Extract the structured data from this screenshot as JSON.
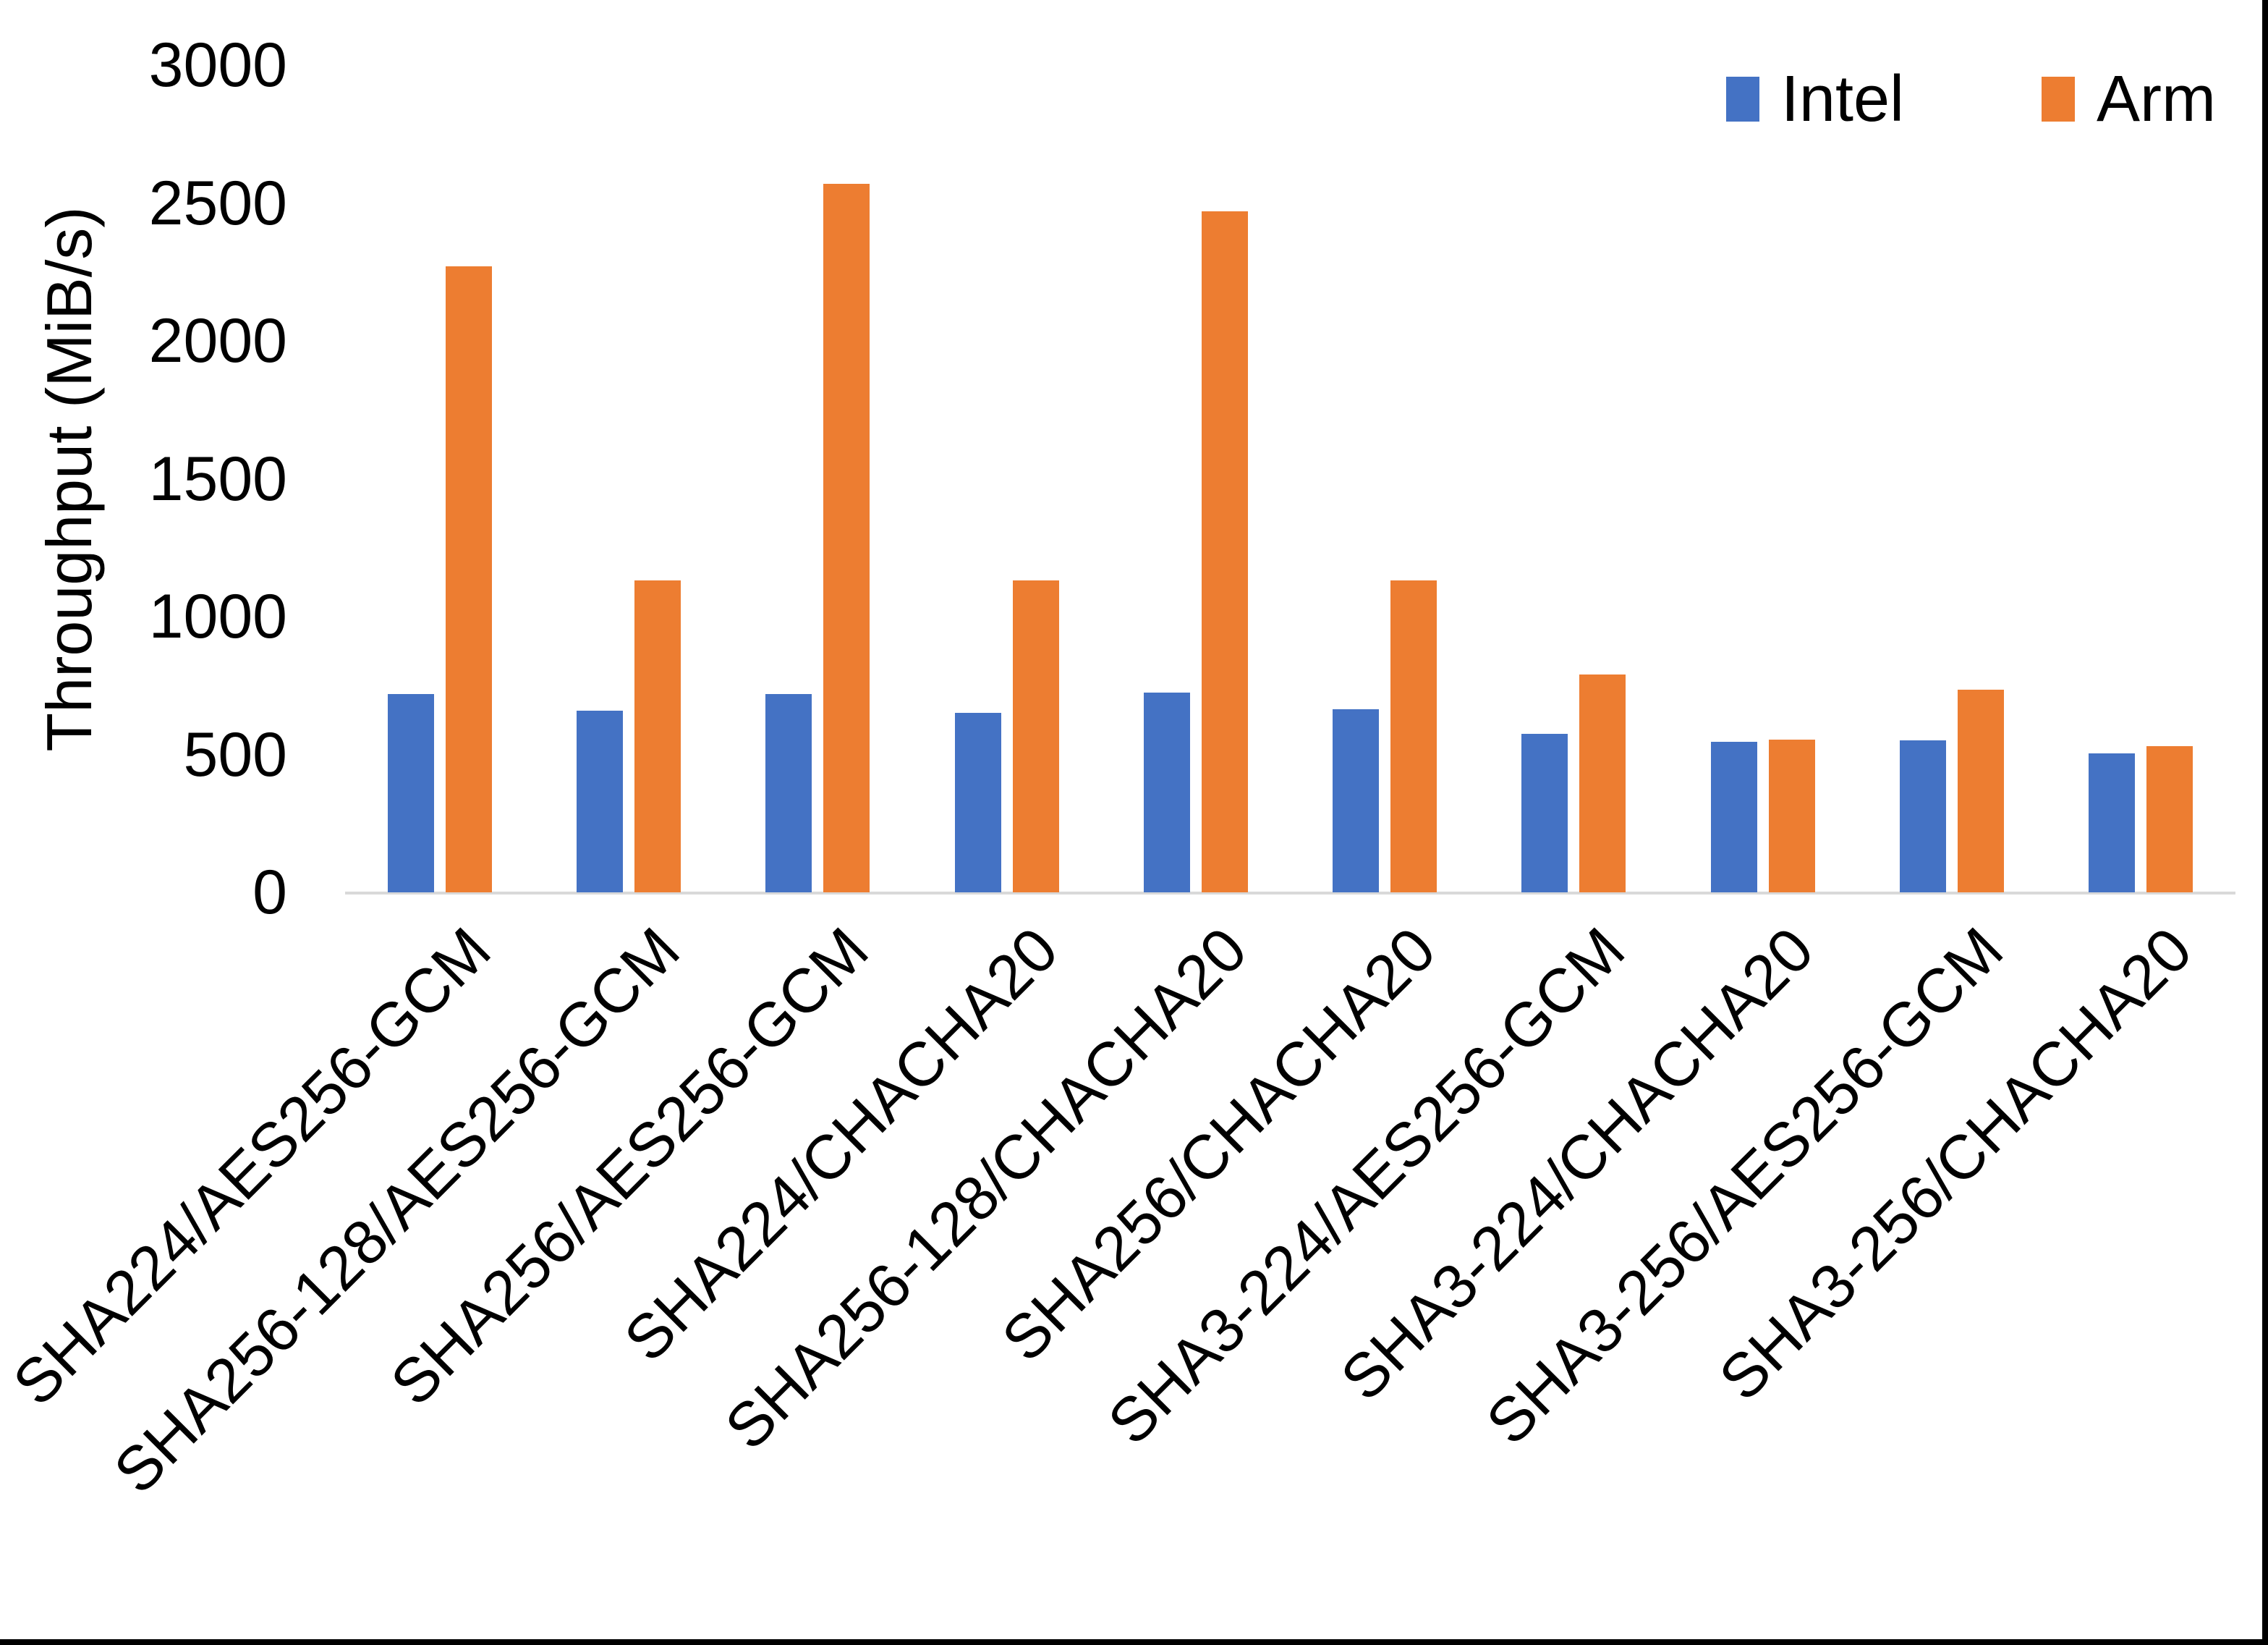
{
  "page": {
    "background": "#ffffff",
    "border_color": "#000000",
    "axis_line_color": "#d9d9d9",
    "text_color": "#000000"
  },
  "legend": {
    "position": "top-right",
    "items": [
      {
        "label": "Intel",
        "color": "#4472c4"
      },
      {
        "label": "Arm",
        "color": "#ed7d31"
      }
    ]
  },
  "chart_data": {
    "type": "bar",
    "title": "",
    "xlabel": "",
    "ylabel": "Throughput (MiB/s)",
    "ylim": [
      0,
      3000
    ],
    "yticks": [
      0,
      500,
      1000,
      1500,
      2000,
      2500,
      3000
    ],
    "grid": false,
    "legend_position": "top-right",
    "categories": [
      "SHA224/AES256-GCM",
      "SHA256-128/AES256-GCM",
      "SHA256/AES256-GCM",
      "SHA224/CHACHA20",
      "SHA256-128/CHACHA20",
      "SHA256/CHACHA20",
      "SHA3-224/AES256-GCM",
      "SHA3-224/CHACHA20",
      "SHA3-256/AES256-GCM",
      "SHA3-256/CHACHA20"
    ],
    "series": [
      {
        "name": "Intel",
        "color": "#4472c4",
        "values": [
          720,
          660,
          720,
          650,
          725,
          665,
          575,
          545,
          550,
          505
        ]
      },
      {
        "name": "Arm",
        "color": "#ed7d31",
        "values": [
          2270,
          1130,
          2570,
          1130,
          2470,
          1130,
          790,
          555,
          735,
          530
        ]
      }
    ]
  }
}
